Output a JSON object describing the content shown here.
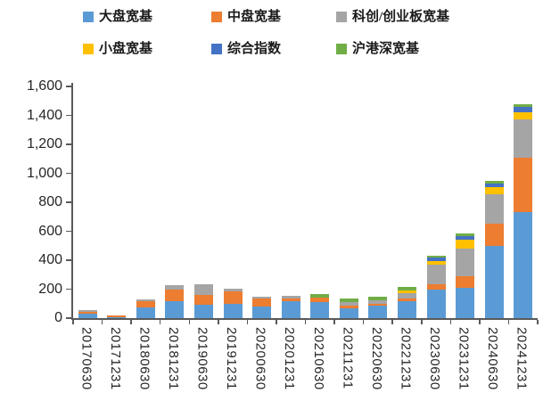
{
  "chart": {
    "background": "#FFFFFF",
    "axis_color": "#595959",
    "text_color": "#262626"
  },
  "legend": {
    "items": [
      {
        "label": "大盘宽基",
        "color": "#5B9BD5"
      },
      {
        "label": "中盘宽基",
        "color": "#ED7D31"
      },
      {
        "label": "科创/创业板宽基",
        "color": "#A5A5A5"
      },
      {
        "label": "小盘宽基",
        "color": "#FFC000"
      },
      {
        "label": "综合指数",
        "color": "#4472C4"
      },
      {
        "label": "沪港深宽基",
        "color": "#70AD47"
      }
    ]
  },
  "chart_data": {
    "type": "bar",
    "stacked": true,
    "title": "",
    "xlabel": "",
    "ylabel": "",
    "ylim": [
      0,
      1600
    ],
    "ytick_step": 200,
    "yticklabels": [
      "0",
      "200",
      "400",
      "600",
      "800",
      "1,000",
      "1,200",
      "1,400",
      "1,600"
    ],
    "grid": false,
    "legend_position": "top",
    "categories": [
      "20170630",
      "20171231",
      "20180630",
      "20181231",
      "20190630",
      "20191231",
      "20200630",
      "20201231",
      "20210630",
      "20211231",
      "20220630",
      "20221231",
      "20230630",
      "20231231",
      "20240630",
      "20241231"
    ],
    "series": [
      {
        "name": "大盘宽基",
        "color": "#5B9BD5",
        "values": [
          28,
          7,
          72,
          115,
          90,
          100,
          78,
          118,
          113,
          70,
          85,
          118,
          200,
          210,
          500,
          735
        ]
      },
      {
        "name": "中盘宽基",
        "color": "#ED7D31",
        "values": [
          15,
          11,
          45,
          82,
          70,
          82,
          55,
          20,
          27,
          15,
          12,
          20,
          37,
          78,
          155,
          370
        ]
      },
      {
        "name": "科创/创业板宽基",
        "color": "#A5A5A5",
        "values": [
          12,
          0,
          15,
          30,
          72,
          20,
          17,
          18,
          0,
          28,
          28,
          35,
          135,
          195,
          200,
          268
        ]
      },
      {
        "name": "小盘宽基",
        "color": "#FFC000",
        "values": [
          0,
          0,
          0,
          0,
          0,
          0,
          0,
          0,
          0,
          0,
          0,
          20,
          25,
          60,
          47,
          50
        ]
      },
      {
        "name": "综合指数",
        "color": "#4472C4",
        "values": [
          0,
          0,
          0,
          0,
          0,
          0,
          0,
          0,
          0,
          0,
          0,
          0,
          20,
          25,
          28,
          35
        ]
      },
      {
        "name": "沪港深宽基",
        "color": "#70AD47",
        "values": [
          0,
          0,
          0,
          0,
          0,
          0,
          0,
          0,
          25,
          20,
          20,
          20,
          15,
          17,
          20,
          17
        ]
      }
    ]
  }
}
